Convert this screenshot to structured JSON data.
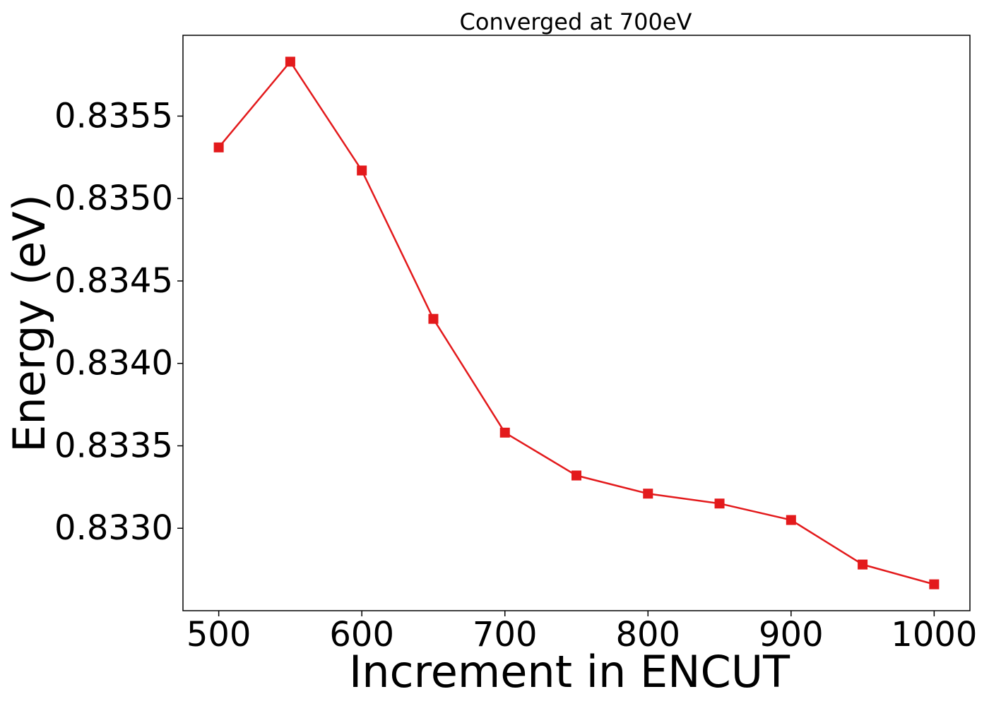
{
  "chart_data": {
    "type": "line",
    "title": "Converged at 700eV",
    "xlabel": "Increment in ENCUT",
    "ylabel": "Energy (eV)",
    "x": [
      500,
      550,
      600,
      650,
      700,
      750,
      800,
      850,
      900,
      950,
      1000
    ],
    "series": [
      {
        "values": [
          0.83531,
          0.83583,
          0.83517,
          0.83427,
          0.83358,
          0.83332,
          0.83321,
          0.83315,
          0.83305,
          0.83278,
          0.83266
        ],
        "color": "#e31a1c",
        "marker": "square"
      }
    ],
    "xticks": [
      500,
      600,
      700,
      800,
      900,
      1000
    ],
    "xtick_labels": [
      "500",
      "600",
      "700",
      "800",
      "900",
      "1000"
    ],
    "yticks": [
      0.833,
      0.8335,
      0.834,
      0.8345,
      0.835,
      0.8355
    ],
    "ytick_labels": [
      "0.8330",
      "0.8335",
      "0.8340",
      "0.8345",
      "0.8350",
      "0.8355"
    ],
    "xlim": [
      475,
      1025
    ],
    "ylim": [
      0.8325,
      0.83599
    ],
    "grid": false,
    "legend": "none"
  }
}
